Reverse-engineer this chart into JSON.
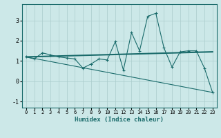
{
  "xlabel": "Humidex (Indice chaleur)",
  "ylabel": "",
  "bg_color": "#cce8e8",
  "line_color": "#1a6b6b",
  "grid_color": "#aacccc",
  "x_data": [
    0,
    1,
    2,
    3,
    4,
    5,
    6,
    7,
    8,
    9,
    10,
    11,
    12,
    13,
    14,
    15,
    16,
    17,
    18,
    19,
    20,
    21,
    22,
    23
  ],
  "y_data": [
    1.2,
    1.1,
    1.4,
    1.3,
    1.2,
    1.15,
    1.1,
    0.65,
    0.85,
    1.1,
    1.05,
    1.95,
    0.55,
    2.4,
    1.5,
    3.2,
    3.35,
    1.65,
    0.7,
    1.45,
    1.5,
    1.5,
    0.65,
    -0.55
  ],
  "trend1_x": [
    0,
    23
  ],
  "trend1_y": [
    1.2,
    1.45
  ],
  "trend2_x": [
    0,
    23
  ],
  "trend2_y": [
    1.2,
    -0.55
  ],
  "xlim": [
    -0.5,
    23.5
  ],
  "ylim": [
    -1.3,
    3.8
  ],
  "yticks": [
    -1,
    0,
    1,
    2,
    3
  ],
  "xticks": [
    0,
    1,
    2,
    3,
    4,
    5,
    6,
    7,
    8,
    9,
    10,
    11,
    12,
    13,
    14,
    15,
    16,
    17,
    18,
    19,
    20,
    21,
    22,
    23
  ]
}
